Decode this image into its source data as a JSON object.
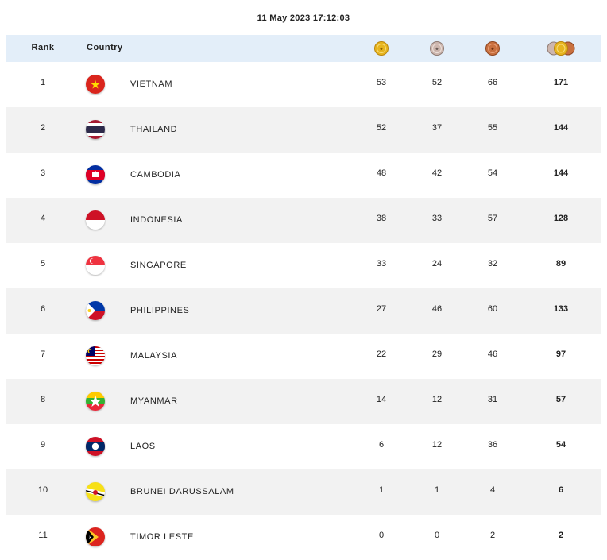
{
  "timestamp": "11 May 2023  17:12:03",
  "columns": {
    "rank": "Rank",
    "country": "Country"
  },
  "colors": {
    "header_bg": "#e3eef9",
    "row_alt": "#f2f2f2",
    "gold": "#e7b51f",
    "silver": "#c9b0a8",
    "bronze": "#c9703f"
  },
  "rows": [
    {
      "rank": "1",
      "country": "VIETNAM",
      "flag": "vietnam-flag-icon",
      "gold": "53",
      "silver": "52",
      "bronze": "66",
      "total": "171"
    },
    {
      "rank": "2",
      "country": "THAILAND",
      "flag": "thailand-flag-icon",
      "gold": "52",
      "silver": "37",
      "bronze": "55",
      "total": "144"
    },
    {
      "rank": "3",
      "country": "CAMBODIA",
      "flag": "cambodia-flag-icon",
      "gold": "48",
      "silver": "42",
      "bronze": "54",
      "total": "144"
    },
    {
      "rank": "4",
      "country": "INDONESIA",
      "flag": "indonesia-flag-icon",
      "gold": "38",
      "silver": "33",
      "bronze": "57",
      "total": "128"
    },
    {
      "rank": "5",
      "country": "SINGAPORE",
      "flag": "singapore-flag-icon",
      "gold": "33",
      "silver": "24",
      "bronze": "32",
      "total": "89"
    },
    {
      "rank": "6",
      "country": "PHILIPPINES",
      "flag": "philippines-flag-icon",
      "gold": "27",
      "silver": "46",
      "bronze": "60",
      "total": "133"
    },
    {
      "rank": "7",
      "country": "MALAYSIA",
      "flag": "malaysia-flag-icon",
      "gold": "22",
      "silver": "29",
      "bronze": "46",
      "total": "97"
    },
    {
      "rank": "8",
      "country": "MYANMAR",
      "flag": "myanmar-flag-icon",
      "gold": "14",
      "silver": "12",
      "bronze": "31",
      "total": "57"
    },
    {
      "rank": "9",
      "country": "LAOS",
      "flag": "laos-flag-icon",
      "gold": "6",
      "silver": "12",
      "bronze": "36",
      "total": "54"
    },
    {
      "rank": "10",
      "country": "BRUNEI DARUSSALAM",
      "flag": "brunei-flag-icon",
      "gold": "1",
      "silver": "1",
      "bronze": "4",
      "total": "6"
    },
    {
      "rank": "11",
      "country": "TIMOR LESTE",
      "flag": "timor-leste-flag-icon",
      "gold": "0",
      "silver": "0",
      "bronze": "2",
      "total": "2"
    }
  ]
}
